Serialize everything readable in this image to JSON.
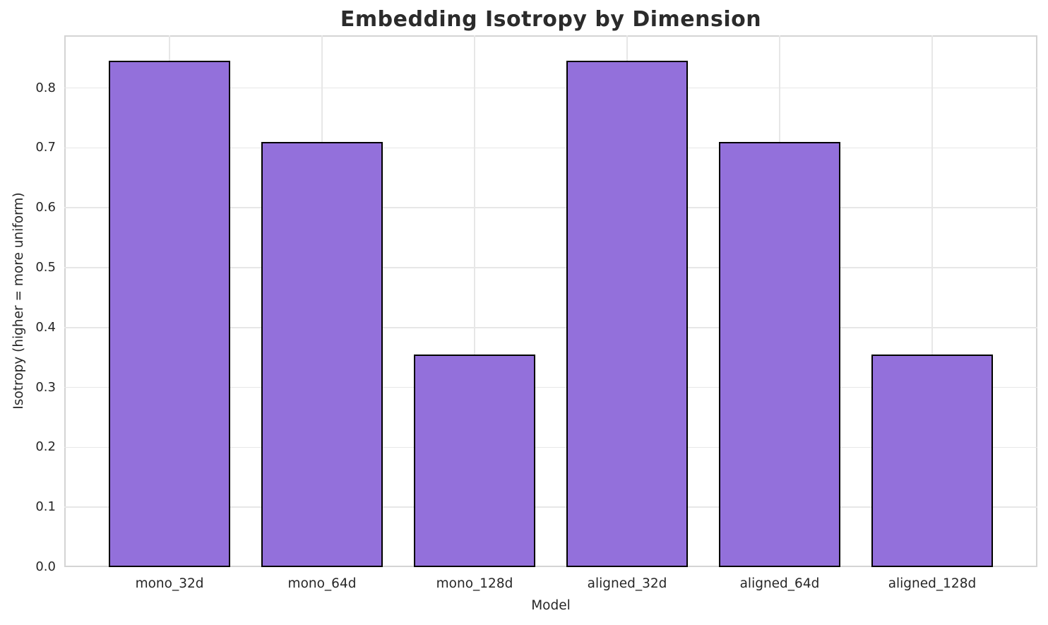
{
  "chart_data": {
    "type": "bar",
    "title": "Embedding Isotropy by Dimension",
    "xlabel": "Model",
    "ylabel": "Isotropy (higher = more uniform)",
    "categories": [
      "mono_32d",
      "mono_64d",
      "mono_128d",
      "aligned_32d",
      "aligned_64d",
      "aligned_128d"
    ],
    "values": [
      0.845,
      0.71,
      0.355,
      0.845,
      0.71,
      0.355
    ],
    "ylim": [
      0,
      0.888
    ],
    "yticks": [
      0,
      0.1,
      0.2,
      0.3,
      0.4,
      0.5,
      0.6,
      0.7,
      0.8
    ],
    "ytick_labels": [
      "0.0",
      "0.1",
      "0.2",
      "0.3",
      "0.4",
      "0.5",
      "0.6",
      "0.7",
      "0.8"
    ],
    "grid": true,
    "legend": false,
    "colors": {
      "bar_fill": "#9370DB",
      "bar_edge": "#000000",
      "grid": "#e7e7e7",
      "spine": "#d4d4d4",
      "text": "#262626"
    }
  }
}
